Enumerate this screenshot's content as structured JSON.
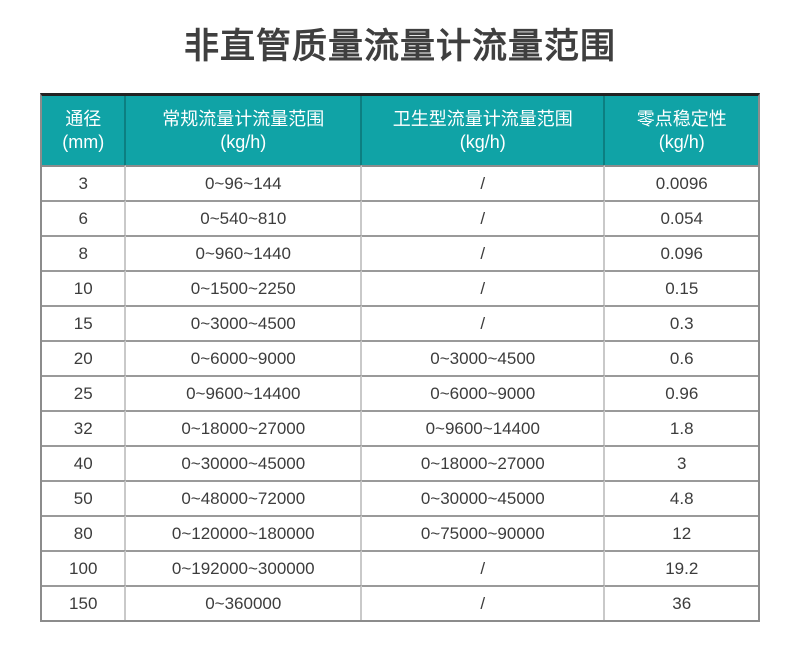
{
  "page": {
    "title": "非直管质量流量计流量范围"
  },
  "colors": {
    "header_bg": "#10a3a6",
    "header_text": "#ffffff",
    "title_text": "#3f3f3f",
    "body_text": "#3c3c3c",
    "row_border": "#9a9a9a",
    "col_border": "#c9c9c9",
    "outer_border": "#8c8c8c",
    "top_border": "#222222"
  },
  "chart_data": {
    "type": "table",
    "title": "非直管质量流量计流量范围",
    "columns": [
      {
        "line1": "通径",
        "line2": "(mm)"
      },
      {
        "line1": "常规流量计流量范围",
        "line2": "(kg/h)"
      },
      {
        "line1": "卫生型流量计流量范围",
        "line2": "(kg/h)"
      },
      {
        "line1": "零点稳定性",
        "line2": "(kg/h)"
      }
    ],
    "rows": [
      [
        "3",
        "0~96~144",
        "/",
        "0.0096"
      ],
      [
        "6",
        "0~540~810",
        "/",
        "0.054"
      ],
      [
        "8",
        "0~960~1440",
        "/",
        "0.096"
      ],
      [
        "10",
        "0~1500~2250",
        "/",
        "0.15"
      ],
      [
        "15",
        "0~3000~4500",
        "/",
        "0.3"
      ],
      [
        "20",
        "0~6000~9000",
        "0~3000~4500",
        "0.6"
      ],
      [
        "25",
        "0~9600~14400",
        "0~6000~9000",
        "0.96"
      ],
      [
        "32",
        "0~18000~27000",
        "0~9600~14400",
        "1.8"
      ],
      [
        "40",
        "0~30000~45000",
        "0~18000~27000",
        "3"
      ],
      [
        "50",
        "0~48000~72000",
        "0~30000~45000",
        "4.8"
      ],
      [
        "80",
        "0~120000~180000",
        "0~75000~90000",
        "12"
      ],
      [
        "100",
        "0~192000~300000",
        "/",
        "19.2"
      ],
      [
        "150",
        "0~360000",
        "/",
        "36"
      ]
    ]
  }
}
